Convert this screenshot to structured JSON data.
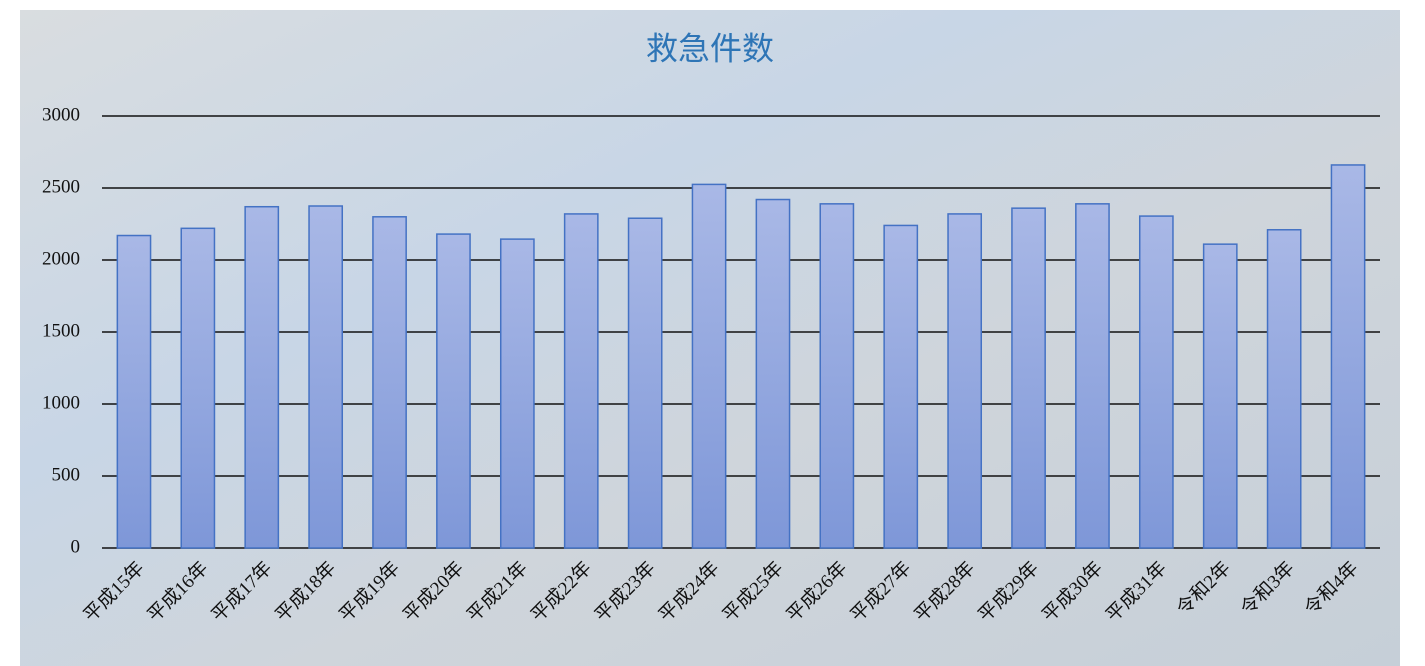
{
  "chart_data": {
    "type": "bar",
    "title": "救急件数",
    "categories": [
      "平成15年",
      "平成16年",
      "平成17年",
      "平成18年",
      "平成19年",
      "平成20年",
      "平成21年",
      "平成22年",
      "平成23年",
      "平成24年",
      "平成25年",
      "平成26年",
      "平成27年",
      "平成28年",
      "平成29年",
      "平成30年",
      "平成31年",
      "令和2年",
      "令和3年",
      "令和4年"
    ],
    "values": [
      2170,
      2220,
      2370,
      2375,
      2300,
      2180,
      2145,
      2320,
      2290,
      2525,
      2420,
      2390,
      2240,
      2320,
      2360,
      2390,
      2305,
      2110,
      2210,
      2660
    ],
    "color": "#8fa5dd",
    "ylim": [
      0,
      3000
    ],
    "yticks": [
      0,
      500,
      1000,
      1500,
      2000,
      2500,
      3000
    ],
    "grid": true
  }
}
